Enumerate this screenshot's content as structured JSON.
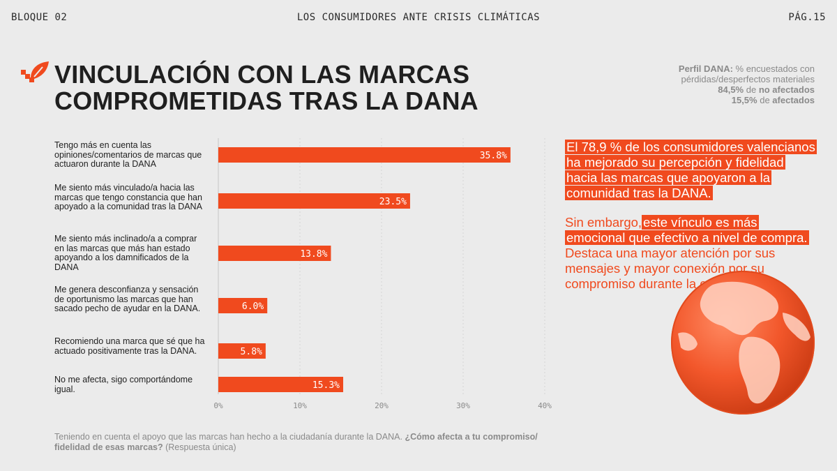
{
  "header": {
    "left": "BLOQUE 02",
    "center": "LOS CONSUMIDORES ANTE CRISIS CLIMÁTICAS",
    "right": "PÁG.15"
  },
  "title": {
    "line1": "VINCULACIÓN CON LAS MARCAS",
    "line2": "COMPROMETIDAS TRAS LA DANA"
  },
  "profile": {
    "label": "Perfil DANA:",
    "text1": " % encuestados con",
    "text2": "pérdidas/desperfectos materiales",
    "pct_unaffected": "84,5%",
    "mid1": " de ",
    "unaffected": "no afectados",
    "pct_affected": "15,5%",
    "mid2": " de ",
    "affected": "afectados"
  },
  "chart_data": {
    "type": "bar",
    "orientation": "horizontal",
    "categories": [
      "Tengo más en cuenta las opiniones/comentarios de marcas que actuaron durante la DANA",
      "Me siento más vinculado/a hacia las marcas que tengo constancia que han apoyado a la comunidad tras la DANA",
      "Me siento más inclinado/a a comprar en las marcas que más han estado apoyando a los damnificados de la DANA",
      "Me genera desconfianza y sensación de oportunismo las marcas que han sacado pecho de ayudar en la DANA.",
      "Recomiendo una marca que sé que ha actuado positivamente tras la DANA.",
      "No me afecta, sigo comportándome igual."
    ],
    "values": [
      35.8,
      23.5,
      13.8,
      6.0,
      5.8,
      15.3
    ],
    "value_labels": [
      "35.8%",
      "23.5%",
      "13.8%",
      "6.0%",
      "5.8%",
      "15.3%"
    ],
    "xlim": [
      0,
      40
    ],
    "ticks": [
      "0%",
      "10%",
      "20%",
      "30%",
      "40%"
    ],
    "grid": true,
    "bar_color": "#f04a1e"
  },
  "blurb": {
    "p1": "El 78,9 % de los consumidores valencianos ha mejorado su percepción y fidelidad hacia las marcas que apoyaron a la comunidad tras la DANA.",
    "p2a": "Sin embargo,",
    "p2b": "este vínculo es más emocional que efectivo a nivel de compra.",
    "p2c": " Destaca una mayor atención por sus mensajes y mayor conexión por su compromiso durante la crisis."
  },
  "footnote": {
    "normal1": "Teniendo en cuenta el apoyo que las marcas han hecho a la ciudadanía durante la DANA. ",
    "bold": "¿Cómo afecta a tu compromiso/ fidelidad de esas marcas?",
    "normal2": " (Respuesta única)"
  },
  "colors": {
    "accent": "#f04a1e",
    "background": "#ebebeb",
    "text": "#1f1f1f",
    "muted": "#8a8a8a"
  }
}
